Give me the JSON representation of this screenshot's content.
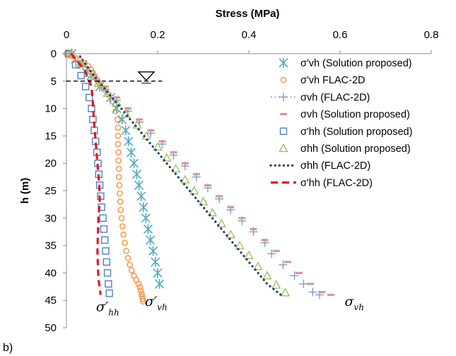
{
  "panel_label": "b)",
  "chart_data": {
    "type": "scatter",
    "title": "",
    "xlabel": "Stress (MPa)",
    "ylabel": "h (m)",
    "x_axis_position": "top",
    "y_axis_inverted": true,
    "xlim": [
      0,
      0.8
    ],
    "ylim": [
      0,
      50
    ],
    "xticks": [
      0,
      0.2,
      0.4,
      0.6,
      0.8
    ],
    "yticks": [
      0,
      5,
      10,
      15,
      20,
      25,
      30,
      35,
      40,
      45,
      50
    ],
    "grid": false,
    "legend_position": "top-right",
    "series": [
      {
        "name": "σ'vh (Solution proposed)",
        "marker": "asterisk",
        "color": "#4BACC6",
        "x": [
          0.012,
          0.036,
          0.054,
          0.073,
          0.097,
          0.11,
          0.122,
          0.13,
          0.136,
          0.142,
          0.148,
          0.154,
          0.159,
          0.164,
          0.169,
          0.174,
          0.179,
          0.184,
          0.19,
          0.195,
          0.2,
          0.204
        ],
        "y": [
          0,
          2,
          4,
          6,
          8,
          10,
          12,
          14,
          16,
          18,
          20,
          22,
          24,
          26,
          28,
          30,
          32,
          34,
          36,
          38,
          40,
          42
        ]
      },
      {
        "name": "σ'vh FLAC-2D",
        "marker": "circle",
        "color": "#F79646",
        "x": [
          0,
          0.01,
          0.02,
          0.03,
          0.04,
          0.048,
          0.054,
          0.058,
          0.062,
          0.066,
          0.07,
          0.074,
          0.082,
          0.092,
          0.1,
          0.108,
          0.112,
          0.113,
          0.113,
          0.113,
          0.114,
          0.114,
          0.115,
          0.115,
          0.116,
          0.117,
          0.118,
          0.119,
          0.121,
          0.123,
          0.125,
          0.128,
          0.131,
          0.135,
          0.139,
          0.143,
          0.148,
          0.153,
          0.158,
          0.161,
          0.163,
          0.165,
          0.166,
          0.167,
          0.168
        ],
        "y": [
          0,
          0.4,
          0.8,
          1.2,
          1.7,
          2.3,
          2.9,
          3.5,
          4.1,
          4.7,
          5.2,
          5.7,
          6.5,
          7.5,
          8.7,
          10.5,
          12,
          13.5,
          15,
          16.5,
          18,
          19.5,
          21,
          22.5,
          24,
          25.5,
          27,
          28.5,
          30,
          31.5,
          33,
          34.5,
          36,
          37.3,
          38.5,
          39.5,
          40.5,
          41.3,
          42,
          42.6,
          43.2,
          43.8,
          44.3,
          44.8,
          45.2
        ]
      },
      {
        "name": "σvh (FLAC-2D)",
        "marker": "plus",
        "color": "#7F9BCD",
        "x": [
          0,
          0.02,
          0.045,
          0.065,
          0.085,
          0.11,
          0.135,
          0.16,
          0.185,
          0.21,
          0.235,
          0.26,
          0.285,
          0.31,
          0.335,
          0.36,
          0.385,
          0.41,
          0.435,
          0.45,
          0.475,
          0.5,
          0.52,
          0.54,
          0.555
        ],
        "y": [
          0,
          1.5,
          3,
          4.7,
          6.5,
          8.5,
          10.5,
          12.5,
          14.5,
          16.5,
          18.5,
          20.5,
          22.5,
          24.5,
          26.5,
          28.5,
          30.5,
          32.5,
          34.5,
          36.5,
          38.5,
          40.5,
          42,
          43.5,
          44
        ]
      },
      {
        "name": "σvh (Solution proposed)",
        "marker": "dash",
        "color": "#D99694",
        "x": [
          0.01,
          0.035,
          0.06,
          0.085,
          0.11,
          0.135,
          0.16,
          0.185,
          0.21,
          0.235,
          0.26,
          0.285,
          0.31,
          0.335,
          0.36,
          0.385,
          0.41,
          0.435,
          0.46,
          0.485,
          0.51,
          0.535,
          0.56,
          0.58
        ],
        "y": [
          0,
          2,
          4,
          6,
          8,
          10,
          12,
          14,
          16,
          18,
          20,
          22,
          24,
          26,
          28,
          30,
          32,
          34,
          36,
          38,
          40,
          42,
          43.5,
          44
        ]
      },
      {
        "name": "σ'hh (Solution proposed)",
        "marker": "square",
        "color": "#4F81BD",
        "x": [
          0.005,
          0.02,
          0.032,
          0.042,
          0.05,
          0.055,
          0.058,
          0.061,
          0.064,
          0.067,
          0.069,
          0.071,
          0.073,
          0.075,
          0.077,
          0.08,
          0.082,
          0.084,
          0.086,
          0.088,
          0.09,
          0.092,
          0.094
        ],
        "y": [
          0,
          2,
          4,
          6,
          8,
          10,
          12,
          14,
          16,
          18,
          20,
          22,
          24,
          26,
          28,
          30,
          32,
          34,
          36,
          38,
          40,
          42,
          43.7
        ]
      },
      {
        "name": "σhh (Solution proposed)",
        "marker": "triangle",
        "color": "#9BBB59",
        "x": [
          0.01,
          0.03,
          0.05,
          0.07,
          0.09,
          0.11,
          0.13,
          0.155,
          0.175,
          0.2,
          0.22,
          0.24,
          0.26,
          0.28,
          0.3,
          0.32,
          0.34,
          0.36,
          0.38,
          0.4,
          0.42,
          0.44,
          0.46,
          0.48
        ],
        "y": [
          0,
          1.8,
          3.6,
          5.4,
          7.2,
          9,
          11,
          13,
          15,
          17,
          19,
          21,
          23,
          25,
          27,
          29,
          31,
          33,
          35,
          36.8,
          38.8,
          40.5,
          42.2,
          43.6
        ]
      },
      {
        "name": "σhh (FLAC-2D)",
        "marker": "dotted-line",
        "color": "#1F3B73",
        "x": [
          0.03,
          0.06,
          0.1,
          0.14,
          0.18,
          0.22,
          0.26,
          0.3,
          0.34,
          0.38,
          0.42,
          0.44,
          0.47
        ],
        "y": [
          0.5,
          4,
          8,
          12,
          16,
          20,
          24,
          28,
          32,
          36,
          40,
          42,
          44
        ]
      },
      {
        "name": "σ'hh (FLAC-2D)",
        "marker": "dashed-line",
        "color": "#E8141F",
        "x": [
          0.01,
          0.04,
          0.055,
          0.058,
          0.06,
          0.063,
          0.066,
          0.069,
          0.072,
          0.073,
          0.07,
          0.068,
          0.07,
          0.075
        ],
        "y": [
          0,
          3,
          6,
          9,
          12,
          15,
          18,
          21,
          24,
          27,
          30,
          36,
          41,
          44
        ]
      }
    ],
    "annotations": [
      {
        "base": "σ′",
        "sub": "hh",
        "x": 0.065,
        "y": 47
      },
      {
        "base": "σ′",
        "sub": "vh",
        "x": 0.172,
        "y": 46
      },
      {
        "base": "σ",
        "sub": "vh",
        "x": 0.61,
        "y": 46
      }
    ],
    "water_table": {
      "x_start": 0,
      "x_end": 0.21,
      "y": 5,
      "marker_x": 0.175
    }
  }
}
